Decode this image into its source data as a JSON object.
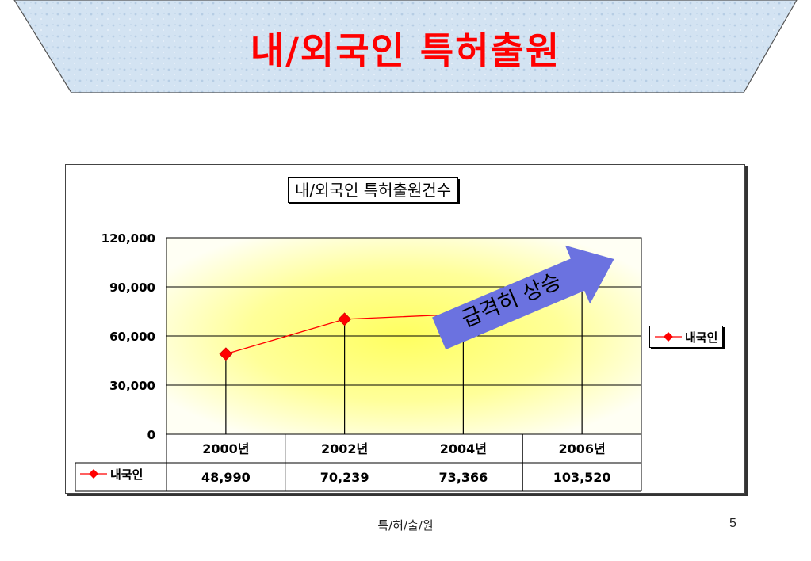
{
  "slide": {
    "title": "내/외국인 특허출원",
    "footer": "특/허/출/원",
    "page_number": "5"
  },
  "callout": {
    "text": "급격히 상승",
    "color": "#6b72e0"
  },
  "colors": {
    "title_red": "#ff0000",
    "series_line": "#ff0000",
    "marker": "#ff0000",
    "plot_gradient_center": "#ffff66",
    "plot_gradient_edge": "#ffffff",
    "banner_fill": "#cfe0f0"
  },
  "chart_data": {
    "type": "line",
    "title": "내/외국인 특허출원건수",
    "categories": [
      "2000년",
      "2002년",
      "2004년",
      "2006년"
    ],
    "series": [
      {
        "name": "내국인",
        "values": [
          48990,
          70239,
          73366,
          103520
        ],
        "value_labels": [
          "48,990",
          "70,239",
          "73,366",
          "103,520"
        ]
      }
    ],
    "y_ticks": [
      "0",
      "30,000",
      "60,000",
      "90,000",
      "120,000"
    ],
    "y_tick_values": [
      0,
      30000,
      60000,
      90000,
      120000
    ],
    "ylim": [
      0,
      120000
    ],
    "grid": true,
    "legend": "right",
    "data_table": true,
    "drop_lines": true,
    "marker": "diamond"
  }
}
